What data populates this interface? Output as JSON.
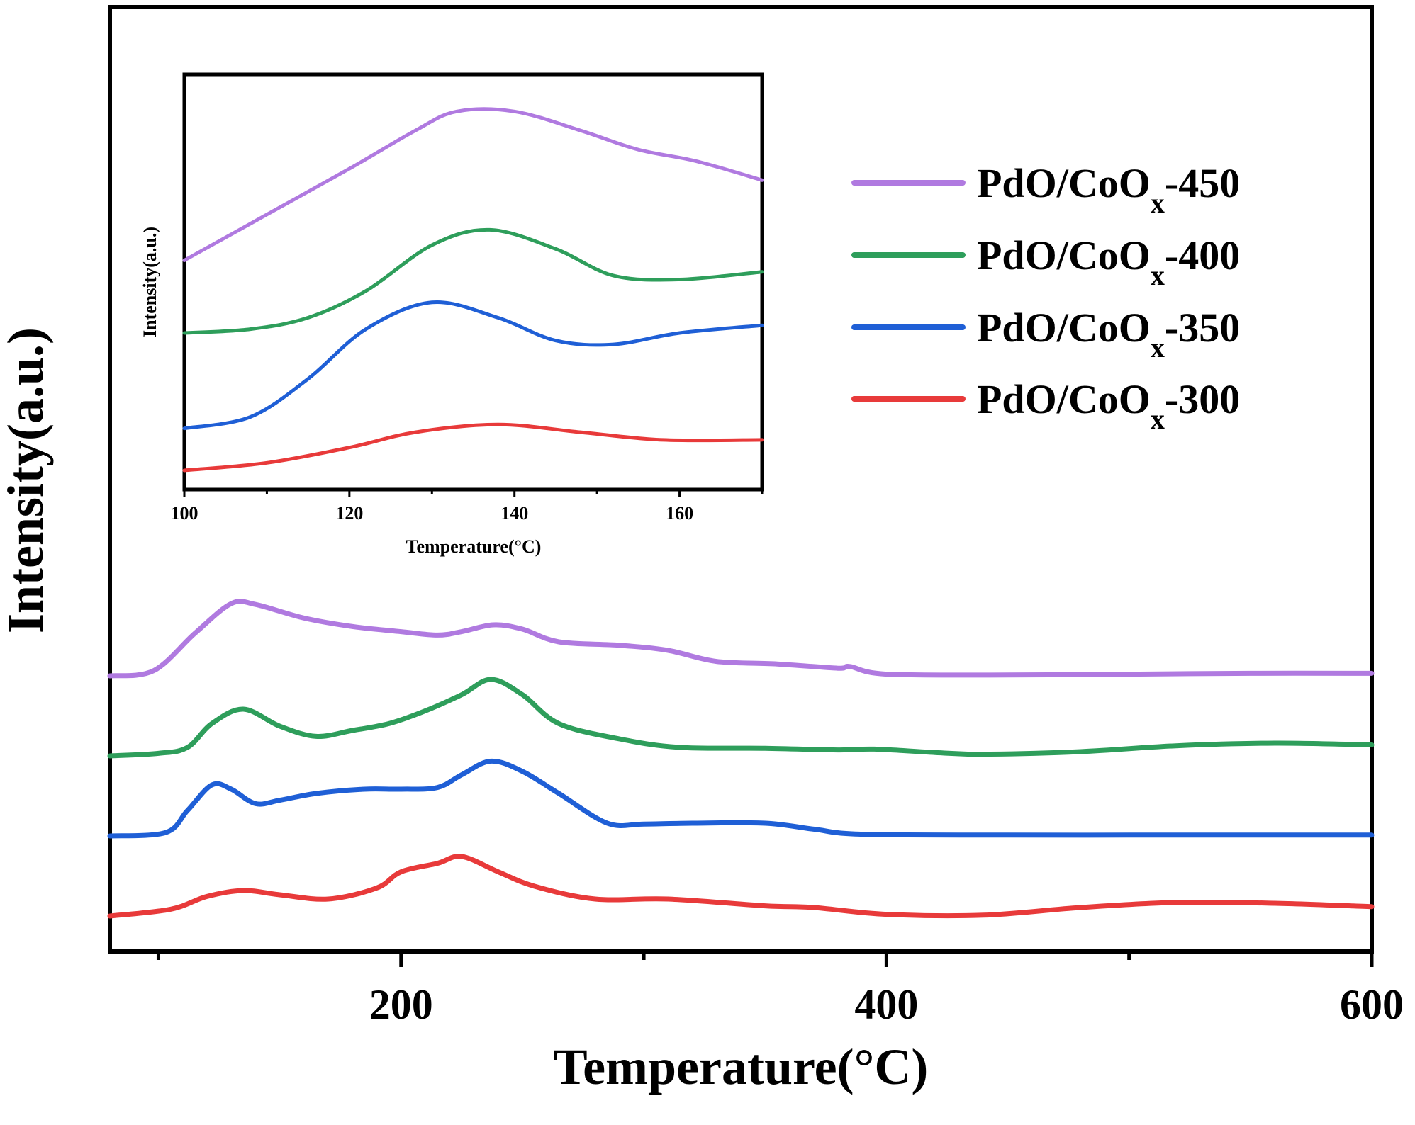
{
  "chart_data": [
    {
      "type": "line",
      "xlabel": "Temperature(°C)",
      "ylabel": "Intensity(a.u.)",
      "xlim": [
        80,
        600
      ],
      "x_ticks": [
        200,
        400,
        600
      ],
      "y_ticks_shown": false,
      "grid": false,
      "legend": "right",
      "series": [
        {
          "name": "PdO/CoO",
          "subscript": "x",
          "suffix": "-450",
          "color": "#b07ae0",
          "offset": 3.0,
          "points": [
            [
              80,
              0.0
            ],
            [
              98,
              0.06
            ],
            [
              115,
              0.5
            ],
            [
              130,
              0.85
            ],
            [
              140,
              0.84
            ],
            [
              160,
              0.68
            ],
            [
              180,
              0.58
            ],
            [
              200,
              0.52
            ],
            [
              215,
              0.48
            ],
            [
              225,
              0.52
            ],
            [
              238,
              0.6
            ],
            [
              250,
              0.55
            ],
            [
              265,
              0.4
            ],
            [
              290,
              0.36
            ],
            [
              310,
              0.3
            ],
            [
              330,
              0.17
            ],
            [
              355,
              0.14
            ],
            [
              380,
              0.09
            ],
            [
              385,
              0.11
            ],
            [
              400,
              0.02
            ],
            [
              450,
              0.01
            ],
            [
              500,
              0.02
            ],
            [
              550,
              0.03
            ],
            [
              600,
              0.03
            ]
          ]
        },
        {
          "name": "PdO/CoO",
          "subscript": "x",
          "suffix": "-400",
          "color": "#2e9e5b",
          "offset": 2.0,
          "points": [
            [
              80,
              0.0
            ],
            [
              100,
              0.03
            ],
            [
              112,
              0.1
            ],
            [
              122,
              0.38
            ],
            [
              135,
              0.55
            ],
            [
              150,
              0.35
            ],
            [
              165,
              0.23
            ],
            [
              180,
              0.3
            ],
            [
              195,
              0.38
            ],
            [
              210,
              0.53
            ],
            [
              225,
              0.72
            ],
            [
              237,
              0.9
            ],
            [
              250,
              0.72
            ],
            [
              265,
              0.38
            ],
            [
              290,
              0.2
            ],
            [
              315,
              0.1
            ],
            [
              350,
              0.09
            ],
            [
              380,
              0.07
            ],
            [
              395,
              0.08
            ],
            [
              420,
              0.04
            ],
            [
              440,
              0.02
            ],
            [
              480,
              0.05
            ],
            [
              520,
              0.12
            ],
            [
              560,
              0.15
            ],
            [
              600,
              0.13
            ]
          ]
        },
        {
          "name": "PdO/CoO",
          "subscript": "x",
          "suffix": "-350",
          "color": "#1f5fd6",
          "offset": 1.0,
          "points": [
            [
              80,
              0.0
            ],
            [
              103,
              0.04
            ],
            [
              112,
              0.3
            ],
            [
              122,
              0.6
            ],
            [
              130,
              0.55
            ],
            [
              140,
              0.38
            ],
            [
              150,
              0.42
            ],
            [
              165,
              0.5
            ],
            [
              185,
              0.55
            ],
            [
              200,
              0.55
            ],
            [
              215,
              0.57
            ],
            [
              225,
              0.72
            ],
            [
              237,
              0.88
            ],
            [
              250,
              0.76
            ],
            [
              265,
              0.5
            ],
            [
              285,
              0.15
            ],
            [
              300,
              0.14
            ],
            [
              320,
              0.15
            ],
            [
              350,
              0.15
            ],
            [
              370,
              0.08
            ],
            [
              390,
              0.02
            ],
            [
              450,
              0.01
            ],
            [
              500,
              0.01
            ],
            [
              550,
              0.01
            ],
            [
              600,
              0.01
            ]
          ]
        },
        {
          "name": "PdO/CoO",
          "subscript": "x",
          "suffix": "-300",
          "color": "#e83a3a",
          "offset": 0.0,
          "points": [
            [
              80,
              0.0
            ],
            [
              105,
              0.08
            ],
            [
              120,
              0.23
            ],
            [
              135,
              0.3
            ],
            [
              150,
              0.25
            ],
            [
              170,
              0.2
            ],
            [
              190,
              0.33
            ],
            [
              200,
              0.52
            ],
            [
              215,
              0.62
            ],
            [
              225,
              0.7
            ],
            [
              240,
              0.52
            ],
            [
              255,
              0.35
            ],
            [
              280,
              0.2
            ],
            [
              310,
              0.2
            ],
            [
              350,
              0.12
            ],
            [
              370,
              0.1
            ],
            [
              400,
              0.02
            ],
            [
              440,
              0.01
            ],
            [
              480,
              0.1
            ],
            [
              520,
              0.16
            ],
            [
              560,
              0.15
            ],
            [
              600,
              0.11
            ]
          ]
        }
      ]
    },
    {
      "type": "line",
      "xlabel": "Temperature(°C)",
      "ylabel": "Intensity(a.u.)",
      "xlim": [
        100,
        170
      ],
      "x_ticks": [
        100,
        120,
        140,
        160
      ],
      "ylim": [
        0,
        1
      ],
      "y_ticks_shown": false,
      "grid": false,
      "series": [
        {
          "name": "PdO/CoOx-450",
          "color": "#b07ae0",
          "points": [
            [
              100,
              0.6
            ],
            [
              110,
              0.72
            ],
            [
              120,
              0.84
            ],
            [
              128,
              0.94
            ],
            [
              133,
              0.99
            ],
            [
              140,
              0.99
            ],
            [
              148,
              0.94
            ],
            [
              155,
              0.89
            ],
            [
              162,
              0.86
            ],
            [
              170,
              0.81
            ]
          ]
        },
        {
          "name": "PdO/CoOx-400",
          "color": "#2e9e5b",
          "points": [
            [
              100,
              0.41
            ],
            [
              108,
              0.42
            ],
            [
              115,
              0.45
            ],
            [
              122,
              0.52
            ],
            [
              130,
              0.64
            ],
            [
              137,
              0.68
            ],
            [
              145,
              0.63
            ],
            [
              152,
              0.56
            ],
            [
              160,
              0.55
            ],
            [
              170,
              0.57
            ]
          ]
        },
        {
          "name": "PdO/CoOx-350",
          "color": "#1f5fd6",
          "points": [
            [
              100,
              0.16
            ],
            [
              108,
              0.19
            ],
            [
              115,
              0.29
            ],
            [
              122,
              0.42
            ],
            [
              130,
              0.49
            ],
            [
              138,
              0.45
            ],
            [
              145,
              0.39
            ],
            [
              152,
              0.38
            ],
            [
              160,
              0.41
            ],
            [
              170,
              0.43
            ]
          ]
        },
        {
          "name": "PdO/CoOx-300",
          "color": "#e83a3a",
          "points": [
            [
              100,
              0.05
            ],
            [
              110,
              0.07
            ],
            [
              120,
              0.11
            ],
            [
              128,
              0.15
            ],
            [
              138,
              0.17
            ],
            [
              148,
              0.15
            ],
            [
              158,
              0.13
            ],
            [
              170,
              0.13
            ]
          ]
        }
      ]
    }
  ]
}
